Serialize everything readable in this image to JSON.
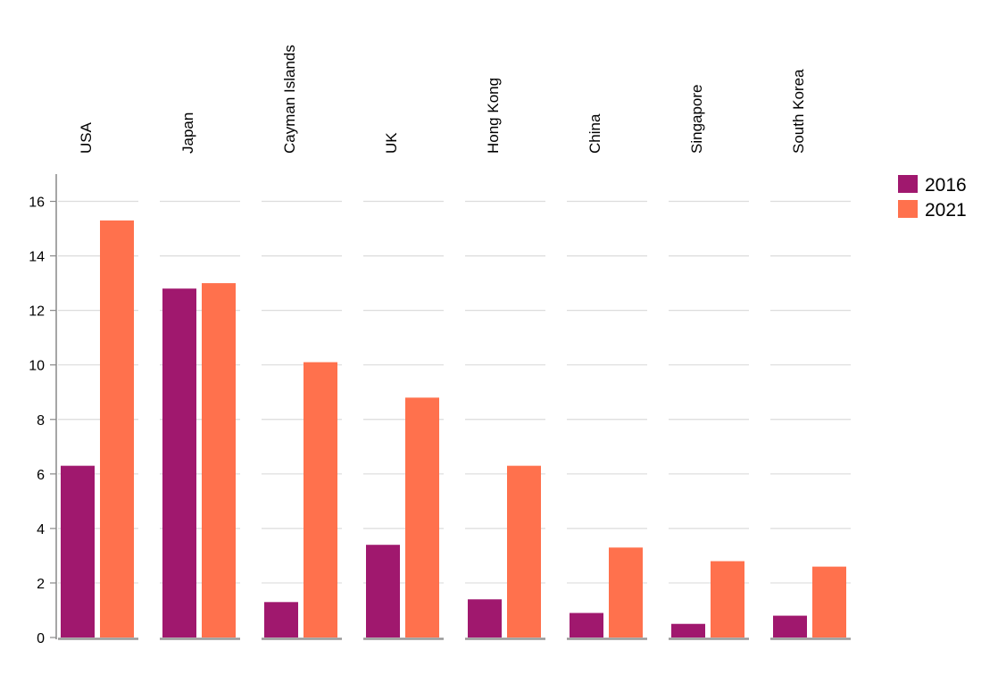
{
  "chart_data": {
    "type": "bar",
    "categories": [
      "USA",
      "Japan",
      "Cayman Islands",
      "UK",
      "Hong Kong",
      "China",
      "Singapore",
      "South Korea"
    ],
    "series": [
      {
        "name": "2016",
        "color": "#a0186e",
        "values": [
          6.3,
          12.8,
          1.3,
          3.4,
          1.4,
          0.9,
          0.5,
          0.8
        ]
      },
      {
        "name": "2021",
        "color": "#ff714d",
        "values": [
          15.3,
          13.0,
          10.1,
          8.8,
          6.3,
          3.3,
          2.8,
          2.6
        ]
      }
    ],
    "ylim": [
      0,
      17
    ],
    "yticks": [
      0,
      2,
      4,
      6,
      8,
      10,
      12,
      14,
      16
    ],
    "grid": true,
    "legend_position": "top-right",
    "category_label_position": "top-rotated"
  }
}
